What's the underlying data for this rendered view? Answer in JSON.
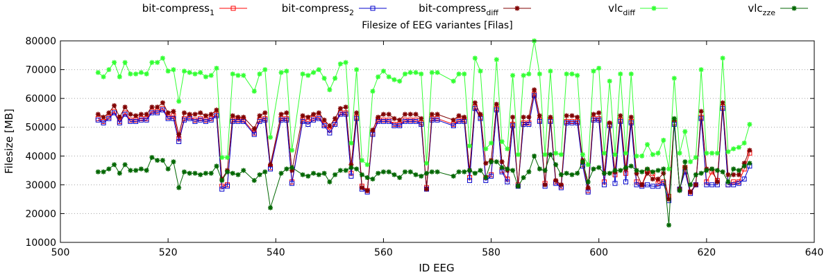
{
  "chart_data": {
    "type": "line",
    "title": "Filesize of EEG variantes [Filas]",
    "xlabel": "ID EEG",
    "ylabel": "Filesize [MB]",
    "xlim": [
      500,
      640
    ],
    "ylim": [
      10000,
      80000
    ],
    "x_ticks": [
      500,
      520,
      540,
      560,
      580,
      600,
      620,
      640
    ],
    "y_ticks": [
      10000,
      20000,
      30000,
      40000,
      50000,
      60000,
      70000,
      80000
    ],
    "grid": "horizontal dotted",
    "legend_position": "top",
    "x": [
      507,
      508,
      509,
      510,
      511,
      512,
      513,
      514,
      515,
      516,
      517,
      518,
      519,
      520,
      521,
      522,
      523,
      524,
      525,
      526,
      527,
      528,
      529,
      530,
      531,
      532,
      533,
      534,
      536,
      537,
      538,
      539,
      541,
      542,
      543,
      545,
      546,
      547,
      548,
      549,
      550,
      551,
      552,
      553,
      554,
      555,
      556,
      557,
      558,
      559,
      560,
      561,
      562,
      563,
      564,
      565,
      566,
      567,
      568,
      569,
      570,
      573,
      574,
      575,
      576,
      577,
      578,
      579,
      580,
      581,
      582,
      583,
      584,
      585,
      586,
      587,
      588,
      589,
      590,
      591,
      592,
      593,
      594,
      595,
      596,
      597,
      598,
      599,
      600,
      601,
      602,
      603,
      604,
      605,
      606,
      607,
      608,
      609,
      610,
      611,
      612,
      613,
      614,
      615,
      616,
      617,
      618,
      619,
      620,
      621,
      622,
      623,
      624,
      625,
      626,
      627,
      628
    ],
    "series": [
      {
        "name": "bit-compress",
        "name_sub": "1",
        "color": "#ff0000",
        "marker": "square-open",
        "values": [
          53000,
          52000,
          53500,
          55500,
          52000,
          55000,
          52500,
          52500,
          53000,
          53000,
          55500,
          55500,
          56500,
          53500,
          54000,
          46000,
          53000,
          53500,
          52500,
          53000,
          52500,
          53000,
          54500,
          29500,
          30000,
          52500,
          52500,
          52500,
          48000,
          52500,
          53000,
          36000,
          53000,
          53000,
          31000,
          52500,
          52000,
          53000,
          53500,
          51000,
          49000,
          51500,
          55000,
          55000,
          34000,
          53500,
          29500,
          28000,
          48000,
          52500,
          52500,
          52500,
          51000,
          51000,
          52500,
          52500,
          52500,
          51500,
          29000,
          53000,
          53000,
          51000,
          52500,
          52500,
          32500,
          57000,
          53500,
          32500,
          33500,
          56500,
          35000,
          32000,
          51000,
          30000,
          51500,
          51500,
          61500,
          52500,
          30500,
          52500,
          31000,
          29500,
          52000,
          52000,
          52000,
          37000,
          28000,
          53000,
          53000,
          31000,
          51000,
          33500,
          52500,
          34000,
          52000,
          31000,
          30000,
          35000,
          34000,
          30500,
          31000,
          26000,
          51500,
          28500,
          36000,
          27500,
          30000,
          53500,
          31000,
          34500,
          31500,
          57000,
          30000,
          31000,
          31000,
          35500,
          41000
        ]
      },
      {
        "name": "bit-compress",
        "name_sub": "2",
        "color": "#0000cc",
        "marker": "square-open",
        "values": [
          52500,
          51500,
          53000,
          55000,
          51500,
          54500,
          52000,
          52000,
          52500,
          52500,
          55000,
          55000,
          56000,
          53000,
          53000,
          45000,
          52500,
          53000,
          52000,
          52500,
          52000,
          52500,
          54000,
          28500,
          29500,
          52000,
          52000,
          52000,
          47500,
          52000,
          52500,
          35500,
          52500,
          52500,
          30500,
          52000,
          51000,
          52500,
          53000,
          50500,
          48000,
          51000,
          54500,
          54500,
          33000,
          53000,
          28500,
          27500,
          47500,
          52000,
          52000,
          52000,
          50500,
          50500,
          52000,
          52000,
          52000,
          51000,
          28500,
          52500,
          52500,
          50500,
          52000,
          52000,
          31500,
          56500,
          53000,
          31500,
          33000,
          56000,
          34500,
          31000,
          50500,
          29500,
          51000,
          51000,
          61000,
          52000,
          29500,
          52000,
          30500,
          29000,
          51500,
          51500,
          51500,
          36500,
          27500,
          52500,
          52500,
          30000,
          50500,
          30500,
          52000,
          31000,
          51500,
          30000,
          29500,
          30000,
          29500,
          29500,
          30500,
          24500,
          51000,
          28500,
          34500,
          27000,
          30000,
          53000,
          30000,
          30000,
          30000,
          56500,
          30000,
          30000,
          30500,
          32000,
          36500
        ]
      },
      {
        "name": "bit-compress",
        "name_sub": "diff",
        "color": "#800000",
        "marker": "star",
        "values": [
          54500,
          53500,
          55000,
          57500,
          53500,
          57000,
          54500,
          54000,
          54500,
          54500,
          57000,
          57000,
          58500,
          55000,
          55500,
          47500,
          55000,
          54500,
          54500,
          55000,
          54000,
          54500,
          56000,
          32000,
          35000,
          54000,
          53500,
          53500,
          49500,
          54000,
          55000,
          37000,
          54500,
          55000,
          35000,
          54000,
          53500,
          54500,
          55000,
          52500,
          50500,
          53000,
          56500,
          57000,
          37000,
          55000,
          29000,
          28000,
          49000,
          53500,
          54500,
          54500,
          53000,
          52500,
          54500,
          54500,
          54500,
          53000,
          28500,
          54500,
          54500,
          52500,
          54000,
          53500,
          35000,
          58500,
          54500,
          37500,
          38500,
          58000,
          38000,
          35000,
          53500,
          29500,
          53500,
          53500,
          63000,
          54000,
          30000,
          53500,
          31500,
          30000,
          54000,
          54000,
          53500,
          38500,
          29000,
          54500,
          55000,
          34000,
          51500,
          34500,
          54000,
          35500,
          53500,
          34000,
          30000,
          34000,
          32000,
          32000,
          34000,
          25000,
          52500,
          28500,
          36000,
          27500,
          30000,
          55500,
          35500,
          35500,
          31000,
          58500,
          33500,
          33500,
          33500,
          37500,
          42000
        ]
      },
      {
        "name": "vlc",
        "name_sub": "diff",
        "color": "#33ff33",
        "marker": "star",
        "values": [
          69000,
          67500,
          70000,
          72500,
          67500,
          72500,
          68500,
          68500,
          69000,
          68500,
          72500,
          72500,
          74000,
          69500,
          70000,
          59000,
          69500,
          69000,
          68500,
          69000,
          67500,
          68000,
          70500,
          39500,
          39500,
          68500,
          68000,
          68000,
          62500,
          68500,
          70000,
          46500,
          69000,
          69500,
          42000,
          68500,
          68000,
          69000,
          70000,
          67000,
          63000,
          67000,
          72000,
          72500,
          44500,
          70000,
          38500,
          37000,
          62500,
          67500,
          69500,
          67500,
          66500,
          66000,
          68500,
          69000,
          69000,
          68500,
          37500,
          69000,
          69000,
          66000,
          68500,
          68500,
          43500,
          74000,
          69500,
          42500,
          44500,
          73500,
          45000,
          42500,
          68000,
          40500,
          68000,
          68500,
          80000,
          68500,
          40500,
          69500,
          41000,
          40500,
          68500,
          68500,
          68000,
          40500,
          37000,
          69500,
          70500,
          41000,
          66000,
          40500,
          68500,
          41000,
          68500,
          40000,
          40000,
          44000,
          40500,
          41000,
          45500,
          35500,
          67000,
          41000,
          48500,
          38000,
          39500,
          70000,
          41000,
          41000,
          41000,
          74000,
          41500,
          42500,
          43000,
          44500,
          51000
        ]
      },
      {
        "name": "vlc",
        "name_sub": "zze",
        "color": "#006600",
        "marker": "star",
        "values": [
          34500,
          34500,
          35500,
          37000,
          34000,
          37000,
          35000,
          35000,
          35500,
          35000,
          39500,
          38500,
          38500,
          35500,
          38000,
          29000,
          34500,
          34000,
          34000,
          33500,
          34000,
          34000,
          36500,
          31500,
          34500,
          34000,
          33500,
          35000,
          31500,
          33500,
          34500,
          22000,
          34000,
          35500,
          36000,
          33500,
          33000,
          34000,
          33500,
          34000,
          31000,
          33500,
          35000,
          35000,
          36000,
          35500,
          33500,
          32500,
          32000,
          34000,
          34500,
          34500,
          33500,
          32500,
          34500,
          34500,
          33500,
          33000,
          34000,
          34500,
          34500,
          33000,
          34500,
          34500,
          35000,
          34000,
          35000,
          32500,
          38000,
          38000,
          36000,
          35500,
          35000,
          29500,
          32500,
          34500,
          40000,
          35500,
          35000,
          40500,
          37000,
          33500,
          34000,
          33500,
          34000,
          38000,
          31000,
          35500,
          36000,
          34000,
          34000,
          35000,
          35000,
          36000,
          36500,
          35000,
          34500,
          35500,
          34500,
          35000,
          35500,
          16000,
          53000,
          28000,
          38000,
          30000,
          33500,
          34000,
          35000,
          35500,
          35000,
          34500,
          31000,
          35500,
          35000,
          36500,
          37500
        ]
      }
    ]
  }
}
